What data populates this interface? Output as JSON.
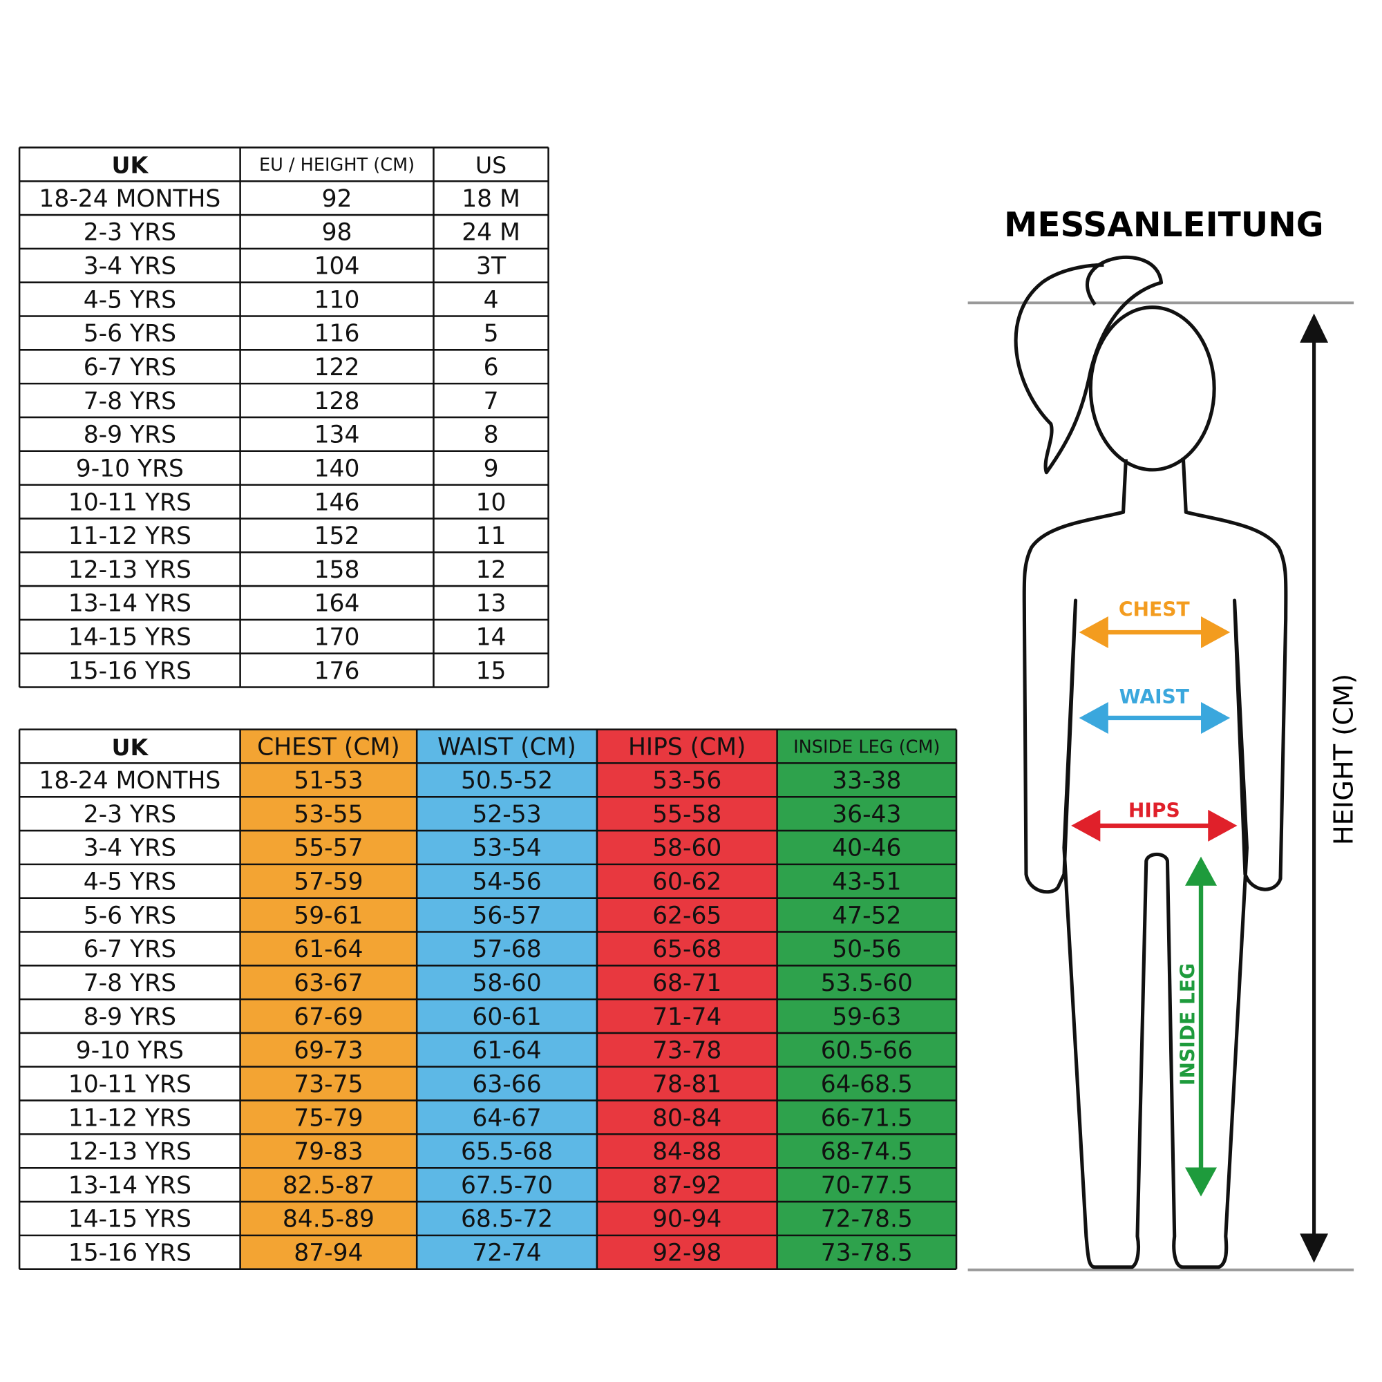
{
  "size_table": {
    "header": [
      "UK",
      "EU / HEIGHT (CM)",
      "US"
    ],
    "rows": [
      [
        "18-24 MONTHS",
        "92",
        "18 M"
      ],
      [
        "2-3 YRS",
        "98",
        "24 M"
      ],
      [
        "3-4 YRS",
        "104",
        "3T"
      ],
      [
        "4-5 YRS",
        "110",
        "4"
      ],
      [
        "5-6 YRS",
        "116",
        "5"
      ],
      [
        "6-7 YRS",
        "122",
        "6"
      ],
      [
        "7-8 YRS",
        "128",
        "7"
      ],
      [
        "8-9 YRS",
        "134",
        "8"
      ],
      [
        "9-10 YRS",
        "140",
        "9"
      ],
      [
        "10-11 YRS",
        "146",
        "10"
      ],
      [
        "11-12 YRS",
        "152",
        "11"
      ],
      [
        "12-13 YRS",
        "158",
        "12"
      ],
      [
        "13-14 YRS",
        "164",
        "13"
      ],
      [
        "14-15 YRS",
        "170",
        "14"
      ],
      [
        "15-16 YRS",
        "176",
        "15"
      ]
    ]
  },
  "measurement_table": {
    "header": [
      "UK",
      "CHEST (CM)",
      "WAIST (CM)",
      "HIPS (CM)",
      "INSIDE LEG (CM)"
    ],
    "rows": [
      [
        "18-24 MONTHS",
        "51-53",
        "50.5-52",
        "53-56",
        "33-38"
      ],
      [
        "2-3 YRS",
        "53-55",
        "52-53",
        "55-58",
        "36-43"
      ],
      [
        "3-4 YRS",
        "55-57",
        "53-54",
        "58-60",
        "40-46"
      ],
      [
        "4-5 YRS",
        "57-59",
        "54-56",
        "60-62",
        "43-51"
      ],
      [
        "5-6 YRS",
        "59-61",
        "56-57",
        "62-65",
        "47-52"
      ],
      [
        "6-7 YRS",
        "61-64",
        "57-68",
        "65-68",
        "50-56"
      ],
      [
        "7-8 YRS",
        "63-67",
        "58-60",
        "68-71",
        "53.5-60"
      ],
      [
        "8-9 YRS",
        "67-69",
        "60-61",
        "71-74",
        "59-63"
      ],
      [
        "9-10 YRS",
        "69-73",
        "61-64",
        "73-78",
        "60.5-66"
      ],
      [
        "10-11 YRS",
        "73-75",
        "63-66",
        "78-81",
        "64-68.5"
      ],
      [
        "11-12 YRS",
        "75-79",
        "64-67",
        "80-84",
        "66-71.5"
      ],
      [
        "12-13 YRS",
        "79-83",
        "65.5-68",
        "84-88",
        "68-74.5"
      ],
      [
        "13-14 YRS",
        "82.5-87",
        "67.5-70",
        "87-92",
        "70-77.5"
      ],
      [
        "14-15 YRS",
        "84.5-89",
        "68.5-72",
        "90-94",
        "72-78.5"
      ],
      [
        "15-16 YRS",
        "87-94",
        "72-74",
        "92-98",
        "73-78.5"
      ]
    ]
  },
  "guide": {
    "title": "MESSANLEITUNG",
    "chest": "CHEST",
    "waist": "WAIST",
    "hips": "HIPS",
    "inside_leg": "INSIDE LEG",
    "height": "HEIGHT (CM)"
  }
}
